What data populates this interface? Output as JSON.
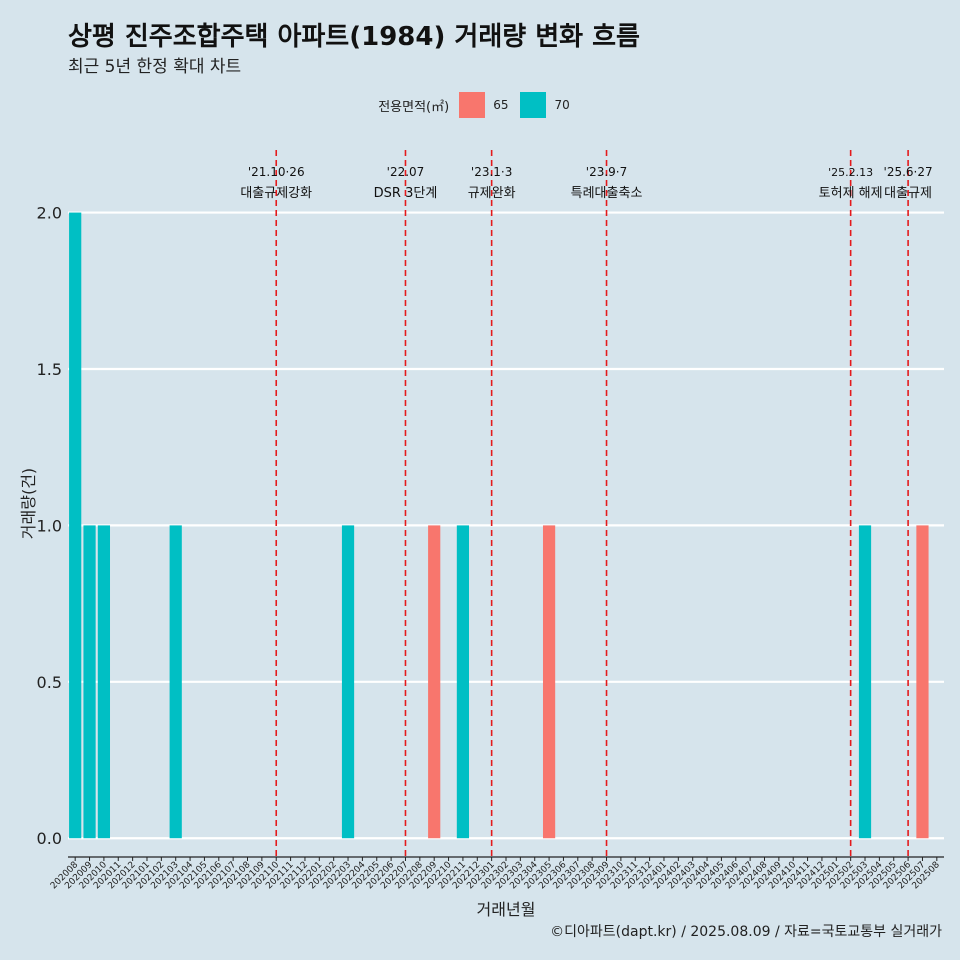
{
  "chart_data": {
    "type": "bar",
    "title": "상평 진주조합주택 아파트(1984) 거래량 변화 흐름",
    "subtitle": "최근 5년 한정 확대 차트",
    "xlabel": "거래년월",
    "ylabel": "거래량(건)",
    "caption": "©디아파트(dapt.kr) / 2025.08.09 / 자료=국토교통부 실거래가",
    "ylim": [
      -0.06,
      2.2
    ],
    "yticks": [
      "0.0",
      "0.5",
      "1.0",
      "1.5",
      "2.0"
    ],
    "legend": {
      "title": "전용면적(㎡)",
      "position": "top"
    },
    "categories": [
      "202008",
      "202009",
      "202010",
      "202011",
      "202012",
      "202101",
      "202102",
      "202103",
      "202104",
      "202105",
      "202106",
      "202107",
      "202108",
      "202109",
      "202110",
      "202111",
      "202112",
      "202201",
      "202202",
      "202203",
      "202204",
      "202205",
      "202206",
      "202207",
      "202208",
      "202209",
      "202210",
      "202211",
      "202212",
      "202301",
      "202302",
      "202303",
      "202304",
      "202305",
      "202306",
      "202307",
      "202308",
      "202309",
      "202310",
      "202311",
      "202312",
      "202401",
      "202402",
      "202403",
      "202404",
      "202405",
      "202406",
      "202407",
      "202408",
      "202409",
      "202410",
      "202411",
      "202412",
      "202501",
      "202502",
      "202503",
      "202504",
      "202505",
      "202506",
      "202507",
      "202508"
    ],
    "series": [
      {
        "name": "65",
        "color": "#f8766d",
        "values": [
          0,
          0,
          0,
          0,
          0,
          0,
          0,
          0,
          0,
          0,
          0,
          0,
          0,
          0,
          0,
          0,
          0,
          0,
          0,
          0,
          0,
          0,
          0,
          0,
          0,
          1,
          0,
          0,
          0,
          0,
          0,
          0,
          0,
          1,
          0,
          0,
          0,
          0,
          0,
          0,
          0,
          0,
          0,
          0,
          0,
          0,
          0,
          0,
          0,
          0,
          0,
          0,
          0,
          0,
          0,
          0,
          0,
          0,
          0,
          1,
          0
        ]
      },
      {
        "name": "70",
        "color": "#00bfc4",
        "values": [
          2,
          1,
          1,
          0,
          0,
          0,
          0,
          1,
          0,
          0,
          0,
          0,
          0,
          0,
          0,
          0,
          0,
          0,
          0,
          1,
          0,
          0,
          0,
          0,
          0,
          0,
          0,
          1,
          0,
          0,
          0,
          0,
          0,
          0,
          0,
          0,
          0,
          0,
          0,
          0,
          0,
          0,
          0,
          0,
          0,
          0,
          0,
          0,
          0,
          0,
          0,
          0,
          0,
          0,
          0,
          1,
          0,
          0,
          0,
          0,
          0
        ]
      }
    ],
    "annotations": [
      {
        "x": "202110",
        "date": "'21.10·26",
        "label": "대출규제강화"
      },
      {
        "x": "202207",
        "date": "'22.07",
        "label": "DSR 3단계"
      },
      {
        "x": "202301",
        "date": "'23.1·3",
        "label": "규제완화"
      },
      {
        "x": "202309",
        "date": "'23.9·7",
        "label": "특례대출축소"
      },
      {
        "x": "202502",
        "date": "'25.2.13",
        "label": "토허제 해제"
      },
      {
        "x": "202506",
        "date": "'25.6·27",
        "label": "대출규제"
      }
    ],
    "grid": true
  }
}
